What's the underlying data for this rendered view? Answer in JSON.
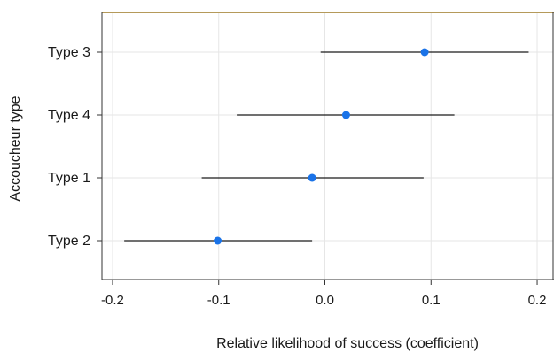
{
  "chart_data": {
    "type": "scatter",
    "subtype": "coefficient-plot-with-intervals",
    "title": "",
    "xlabel": "Relative  likelihood of success (coefficient)",
    "ylabel": "Accoucheur type",
    "xlim": [
      -0.21,
      0.215
    ],
    "xticks": [
      -0.2,
      -0.1,
      0.0,
      0.1,
      0.2
    ],
    "xtick_labels": [
      "-0.2",
      "-0.1",
      "0.0",
      "0.1",
      "0.2"
    ],
    "grid": true,
    "points": [
      {
        "category": "Type 3",
        "estimate": 0.094,
        "lower": -0.004,
        "upper": 0.192
      },
      {
        "category": "Type 4",
        "estimate": 0.02,
        "lower": -0.083,
        "upper": 0.122
      },
      {
        "category": "Type 1",
        "estimate": -0.012,
        "lower": -0.116,
        "upper": 0.093
      },
      {
        "category": "Type 2",
        "estimate": -0.101,
        "lower": -0.189,
        "upper": -0.012
      }
    ],
    "colors": {
      "point": "#1a73e8",
      "interval": "#1a1a1a",
      "grid": "#e6e6e6",
      "frame": "#333333",
      "top_border": "#b59a5a"
    }
  }
}
